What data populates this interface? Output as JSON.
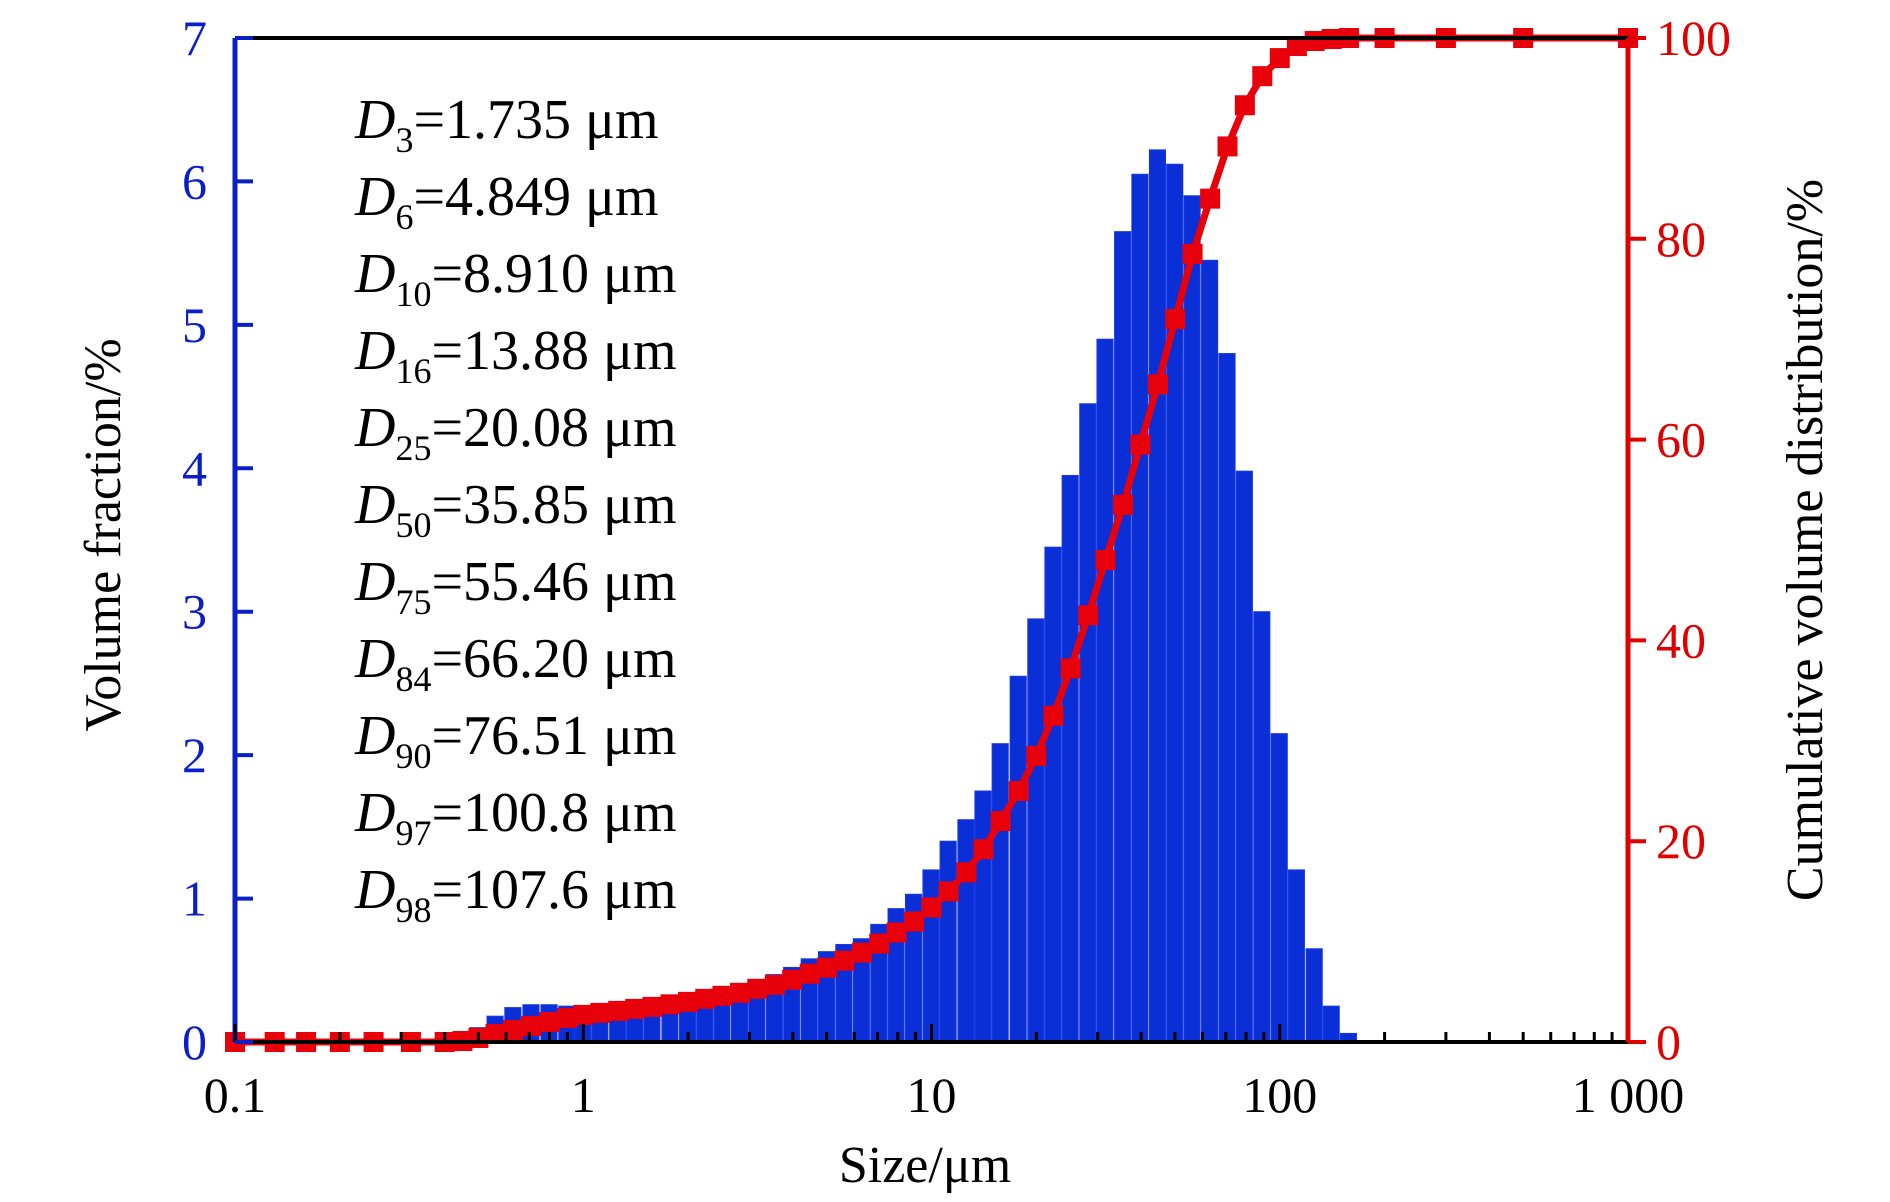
{
  "chart_data": {
    "type": "bar",
    "x_scale": "log",
    "xlabel": "Size/μm",
    "ylabel_left": "Volume fraction/%",
    "ylabel_right": "Cumulative volume distribution/%",
    "xlim": [
      0.1,
      1000
    ],
    "ylim_left": [
      0,
      7
    ],
    "ylim_right": [
      0,
      100
    ],
    "x_ticks": [
      {
        "value": 0.1,
        "label": "0.1"
      },
      {
        "value": 1,
        "label": "1"
      },
      {
        "value": 10,
        "label": "10"
      },
      {
        "value": 100,
        "label": "100"
      },
      {
        "value": 1000,
        "label": "1 000"
      }
    ],
    "y_ticks_left": [
      {
        "value": 0,
        "label": "0"
      },
      {
        "value": 1,
        "label": "1"
      },
      {
        "value": 2,
        "label": "2"
      },
      {
        "value": 3,
        "label": "3"
      },
      {
        "value": 4,
        "label": "4"
      },
      {
        "value": 5,
        "label": "5"
      },
      {
        "value": 6,
        "label": "6"
      },
      {
        "value": 7,
        "label": "7"
      }
    ],
    "y_ticks_right": [
      {
        "value": 0,
        "label": "0"
      },
      {
        "value": 20,
        "label": "20"
      },
      {
        "value": 40,
        "label": "40"
      },
      {
        "value": 60,
        "label": "60"
      },
      {
        "value": 80,
        "label": "80"
      },
      {
        "value": 100,
        "label": "100"
      }
    ],
    "colors": {
      "bars": "#0a2fd6",
      "cumulative": "#e8000b",
      "left_axis": "#0a1fc7",
      "right_axis": "#e00000"
    },
    "series": [
      {
        "type": "bar",
        "axis": "left",
        "x": [
          0.5,
          0.56,
          0.63,
          0.71,
          0.8,
          0.9,
          1.0,
          1.12,
          1.26,
          1.41,
          1.58,
          1.78,
          2.0,
          2.24,
          2.51,
          2.82,
          3.16,
          3.55,
          3.98,
          4.47,
          5.01,
          5.62,
          6.31,
          7.08,
          7.94,
          8.91,
          10.0,
          11.2,
          12.6,
          14.1,
          15.8,
          17.8,
          20.0,
          22.4,
          25.1,
          28.2,
          31.6,
          35.5,
          39.8,
          44.7,
          50.1,
          56.2,
          63.1,
          70.8,
          79.4,
          89.1,
          100,
          112,
          126,
          141,
          158
        ],
        "values": [
          0.1,
          0.18,
          0.24,
          0.26,
          0.26,
          0.25,
          0.24,
          0.22,
          0.22,
          0.23,
          0.25,
          0.27,
          0.3,
          0.33,
          0.36,
          0.39,
          0.43,
          0.47,
          0.52,
          0.58,
          0.63,
          0.68,
          0.72,
          0.82,
          0.93,
          1.03,
          1.2,
          1.4,
          1.55,
          1.75,
          2.08,
          2.55,
          2.95,
          3.45,
          3.95,
          4.45,
          4.9,
          5.65,
          6.05,
          6.22,
          6.12,
          5.9,
          5.45,
          4.8,
          3.98,
          3.0,
          2.15,
          1.2,
          0.65,
          0.25,
          0.06
        ]
      },
      {
        "type": "line",
        "axis": "right",
        "marker": "square",
        "x": [
          0.1,
          0.13,
          0.16,
          0.2,
          0.25,
          0.32,
          0.4,
          0.45,
          0.5,
          0.56,
          0.63,
          0.71,
          0.8,
          0.9,
          1.0,
          1.12,
          1.26,
          1.41,
          1.58,
          1.78,
          2.0,
          2.24,
          2.51,
          2.82,
          3.16,
          3.55,
          3.98,
          4.47,
          5.01,
          5.62,
          6.31,
          7.08,
          7.94,
          8.91,
          10.0,
          11.2,
          12.6,
          14.1,
          15.8,
          17.8,
          20.0,
          22.4,
          25.1,
          28.2,
          31.6,
          35.5,
          39.8,
          44.7,
          50.1,
          56.2,
          63.1,
          70.8,
          79.4,
          89.1,
          100,
          112,
          126,
          141,
          158,
          200,
          300,
          500,
          1000
        ],
        "values": [
          0,
          0,
          0,
          0,
          0,
          0,
          0,
          0.1,
          0.4,
          0.8,
          1.2,
          1.6,
          2.0,
          2.4,
          2.7,
          2.9,
          3.1,
          3.3,
          3.5,
          3.75,
          4.0,
          4.3,
          4.6,
          4.9,
          5.3,
          5.7,
          6.2,
          6.8,
          7.4,
          8.1,
          8.9,
          9.8,
          10.9,
          12.0,
          13.4,
          15.0,
          16.9,
          19.2,
          22.0,
          25.0,
          28.5,
          32.5,
          37.2,
          42.5,
          48.0,
          53.5,
          59.5,
          65.5,
          72.0,
          78.5,
          84.0,
          89.2,
          93.3,
          96.2,
          98.0,
          99.2,
          99.7,
          99.9,
          100,
          100,
          100,
          100,
          100
        ]
      }
    ],
    "annotations": [
      {
        "sub": "3",
        "value": "=1.735 μm"
      },
      {
        "sub": "6",
        "value": "=4.849 μm"
      },
      {
        "sub": "10",
        "value": "=8.910  μm"
      },
      {
        "sub": "16",
        "value": "=13.88 μm"
      },
      {
        "sub": "25",
        "value": "=20.08 μm"
      },
      {
        "sub": "50",
        "value": "=35.85 μm"
      },
      {
        "sub": "75",
        "value": "=55.46 μm"
      },
      {
        "sub": "84",
        "value": "=66.20 μm"
      },
      {
        "sub": "90",
        "value": "=76.51 μm"
      },
      {
        "sub": "97",
        "value": "=100.8 μm"
      },
      {
        "sub": "98",
        "value": "=107.6 μm"
      }
    ],
    "annotation_symbol": "D"
  }
}
